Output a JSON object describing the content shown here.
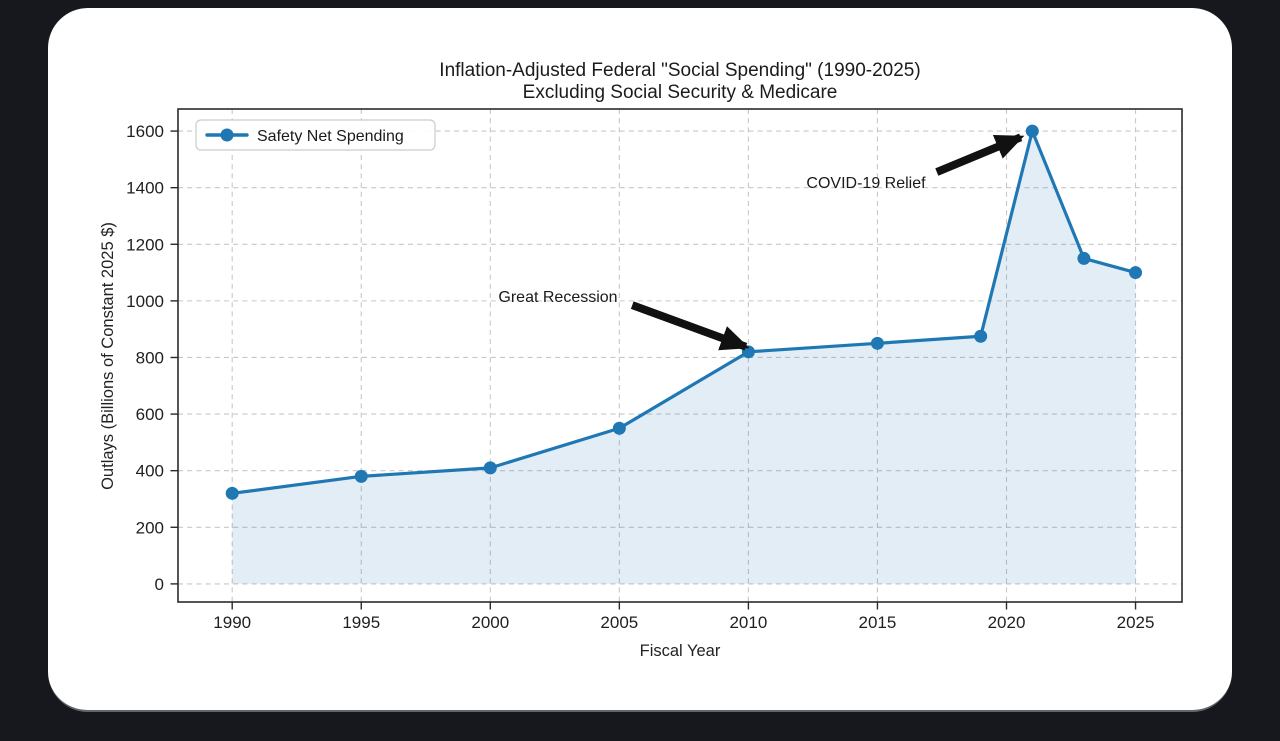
{
  "page": {
    "background_color": "#17181d",
    "card_background_color": "#ffffff"
  },
  "chart_data": {
    "type": "area",
    "title": "Inflation-Adjusted Federal \"Social Spending\" (1990-2025)",
    "subtitle": "Excluding Social Security & Medicare",
    "xlabel": "Fiscal Year",
    "ylabel": "Outlays (Billions of Constant 2025 $)",
    "series": [
      {
        "name": "Safety Net Spending",
        "x": [
          1990,
          1995,
          2000,
          2005,
          2010,
          2015,
          2019,
          2021,
          2023,
          2025
        ],
        "values": [
          320,
          380,
          410,
          550,
          820,
          850,
          875,
          1600,
          1150,
          1100
        ]
      }
    ],
    "xticks": [
      1990,
      1995,
      2000,
      2005,
      2010,
      2015,
      2020,
      2025
    ],
    "yticks": [
      0,
      200,
      400,
      600,
      800,
      1000,
      1200,
      1400,
      1600
    ],
    "xlim": [
      1987.9,
      2026.8
    ],
    "ylim": [
      -64,
      1678
    ],
    "grid": true,
    "grid_style": "dashed",
    "legend_position": "upper-left",
    "line_color": "#1f77b4",
    "fill_color": "rgba(31,119,180,0.13)",
    "marker": "circle",
    "annotation_color": "#111111",
    "annotations": [
      {
        "text": "Great Recession",
        "text_at": [
          2002.7,
          1020
        ],
        "arrow_from": [
          2005.5,
          985
        ],
        "arrow_to": [
          2009.9,
          838
        ],
        "points_to": {
          "x": 2010,
          "value": 820
        }
      },
      {
        "text": "COVID-19 Relief",
        "text_at": [
          2014.5,
          1420
        ],
        "arrow_from": [
          2017.3,
          1455
        ],
        "arrow_to": [
          2020.55,
          1578
        ],
        "points_to": {
          "x": 2021,
          "value": 1600
        }
      }
    ]
  }
}
